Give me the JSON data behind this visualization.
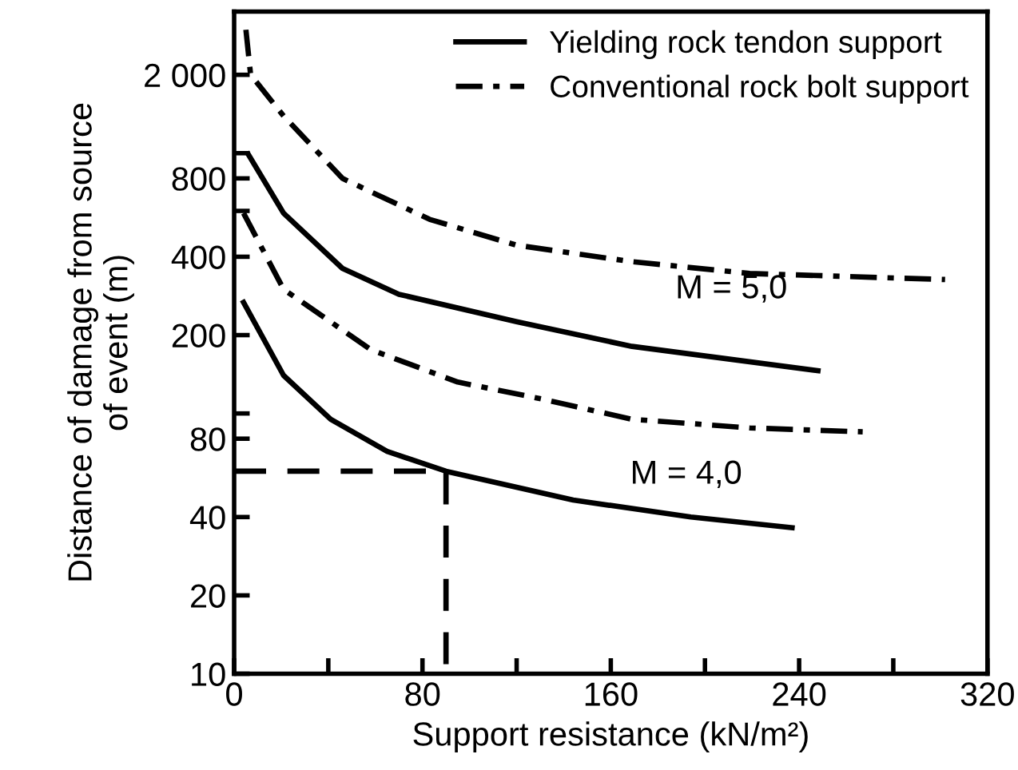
{
  "chart_data": {
    "type": "line",
    "xlabel": "Support resistance (kN/m²)",
    "ylabel": "Distance of damage from source\nof event (m)",
    "log": "y",
    "xlim": [
      0,
      320
    ],
    "ylim": [
      10,
      3500
    ],
    "xticks": [
      0,
      {
        "value": 40,
        "label": null
      },
      80,
      {
        "value": 120,
        "label": null
      },
      160,
      {
        "value": 200,
        "label": null
      },
      240,
      {
        "value": 280,
        "label": null
      },
      320
    ],
    "yticks": [
      10,
      20,
      40,
      80,
      {
        "value": 100,
        "label": null
      },
      200,
      400,
      {
        "value": 600,
        "label": null
      },
      800,
      {
        "value": 1000,
        "label": null
      },
      {
        "value": 2000,
        "label": "2 000"
      }
    ],
    "legend": "top right",
    "grid": false,
    "marker": "none",
    "series": [
      {
        "name": "Yielding rock tendon support",
        "color": "#000000",
        "line_style": "solid",
        "x": [
          6,
          21,
          46,
          70,
          120,
          169,
          248
        ],
        "values": [
          990,
          588,
          361,
          287,
          225,
          181,
          146
        ]
      },
      {
        "name": "Conventional rock bolt support",
        "color": "#000000",
        "line_style": "dashdot",
        "x": [
          5,
          7,
          21,
          46,
          83,
          120,
          169,
          219,
          302
        ],
        "values": [
          2980,
          2000,
          1390,
          800,
          557,
          443,
          383,
          345,
          327
        ]
      },
      {
        "color": "#000000",
        "line_style": "dashdot",
        "x": [
          4,
          21,
          58,
          95,
          132,
          169,
          219,
          267
        ],
        "values": [
          588,
          300,
          176,
          132,
          113,
          95,
          88,
          85
        ]
      },
      {
        "color": "#000000",
        "line_style": "solid",
        "x": [
          4,
          21,
          41,
          65,
          90,
          144,
          194,
          237
        ],
        "values": [
          267,
          140,
          95,
          71.5,
          60,
          46.5,
          40,
          36.4
        ]
      },
      {
        "color": "#000000",
        "line_style": "dashed",
        "x": [
          0,
          90,
          90
        ],
        "values": [
          60,
          60,
          10
        ]
      }
    ],
    "annotations": [
      "M = 5,0",
      "M = 4,0"
    ]
  }
}
